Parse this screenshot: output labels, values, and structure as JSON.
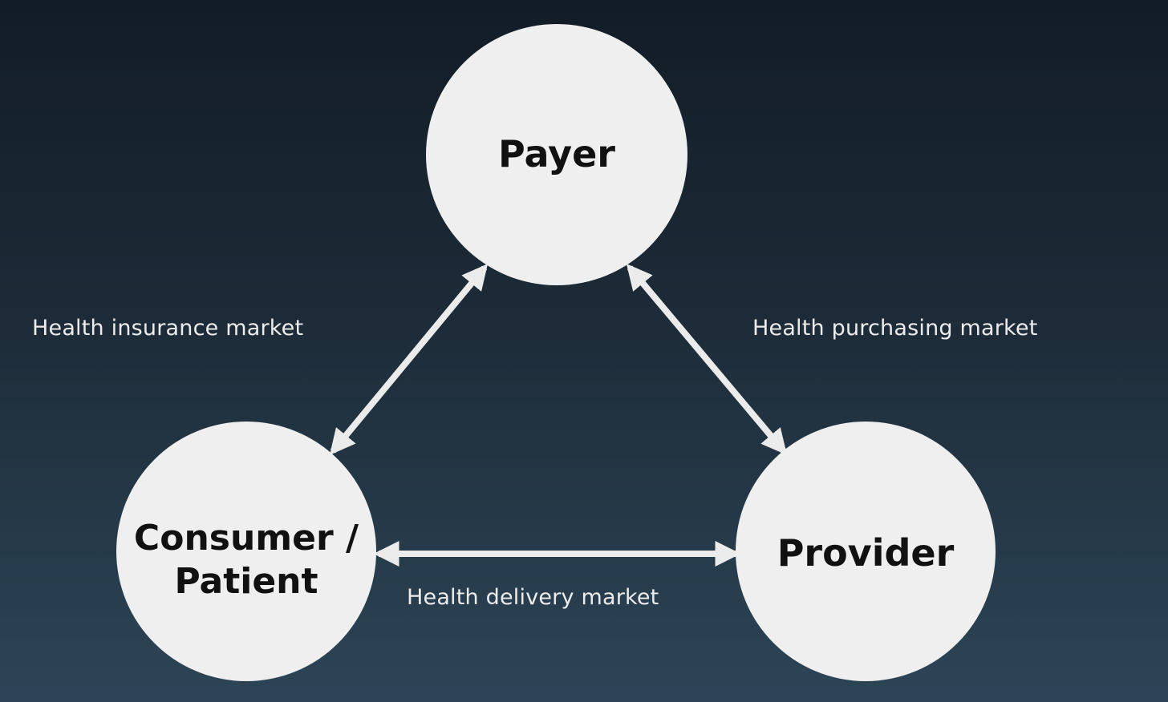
{
  "nodes": {
    "payer": {
      "label": "Payer"
    },
    "consumer": {
      "line1": "Consumer /",
      "line2": "Patient"
    },
    "provider": {
      "label": "Provider"
    }
  },
  "edges": {
    "insurance": {
      "label": "Health insurance market"
    },
    "purchasing": {
      "label": "Health purchasing market"
    },
    "delivery": {
      "label": "Health delivery market"
    }
  },
  "colors": {
    "background_top": "#121c26",
    "background_bottom": "#2c4556",
    "node_fill": "#efefef",
    "arrow": "#ebebeb",
    "label_text": "#ececec"
  }
}
